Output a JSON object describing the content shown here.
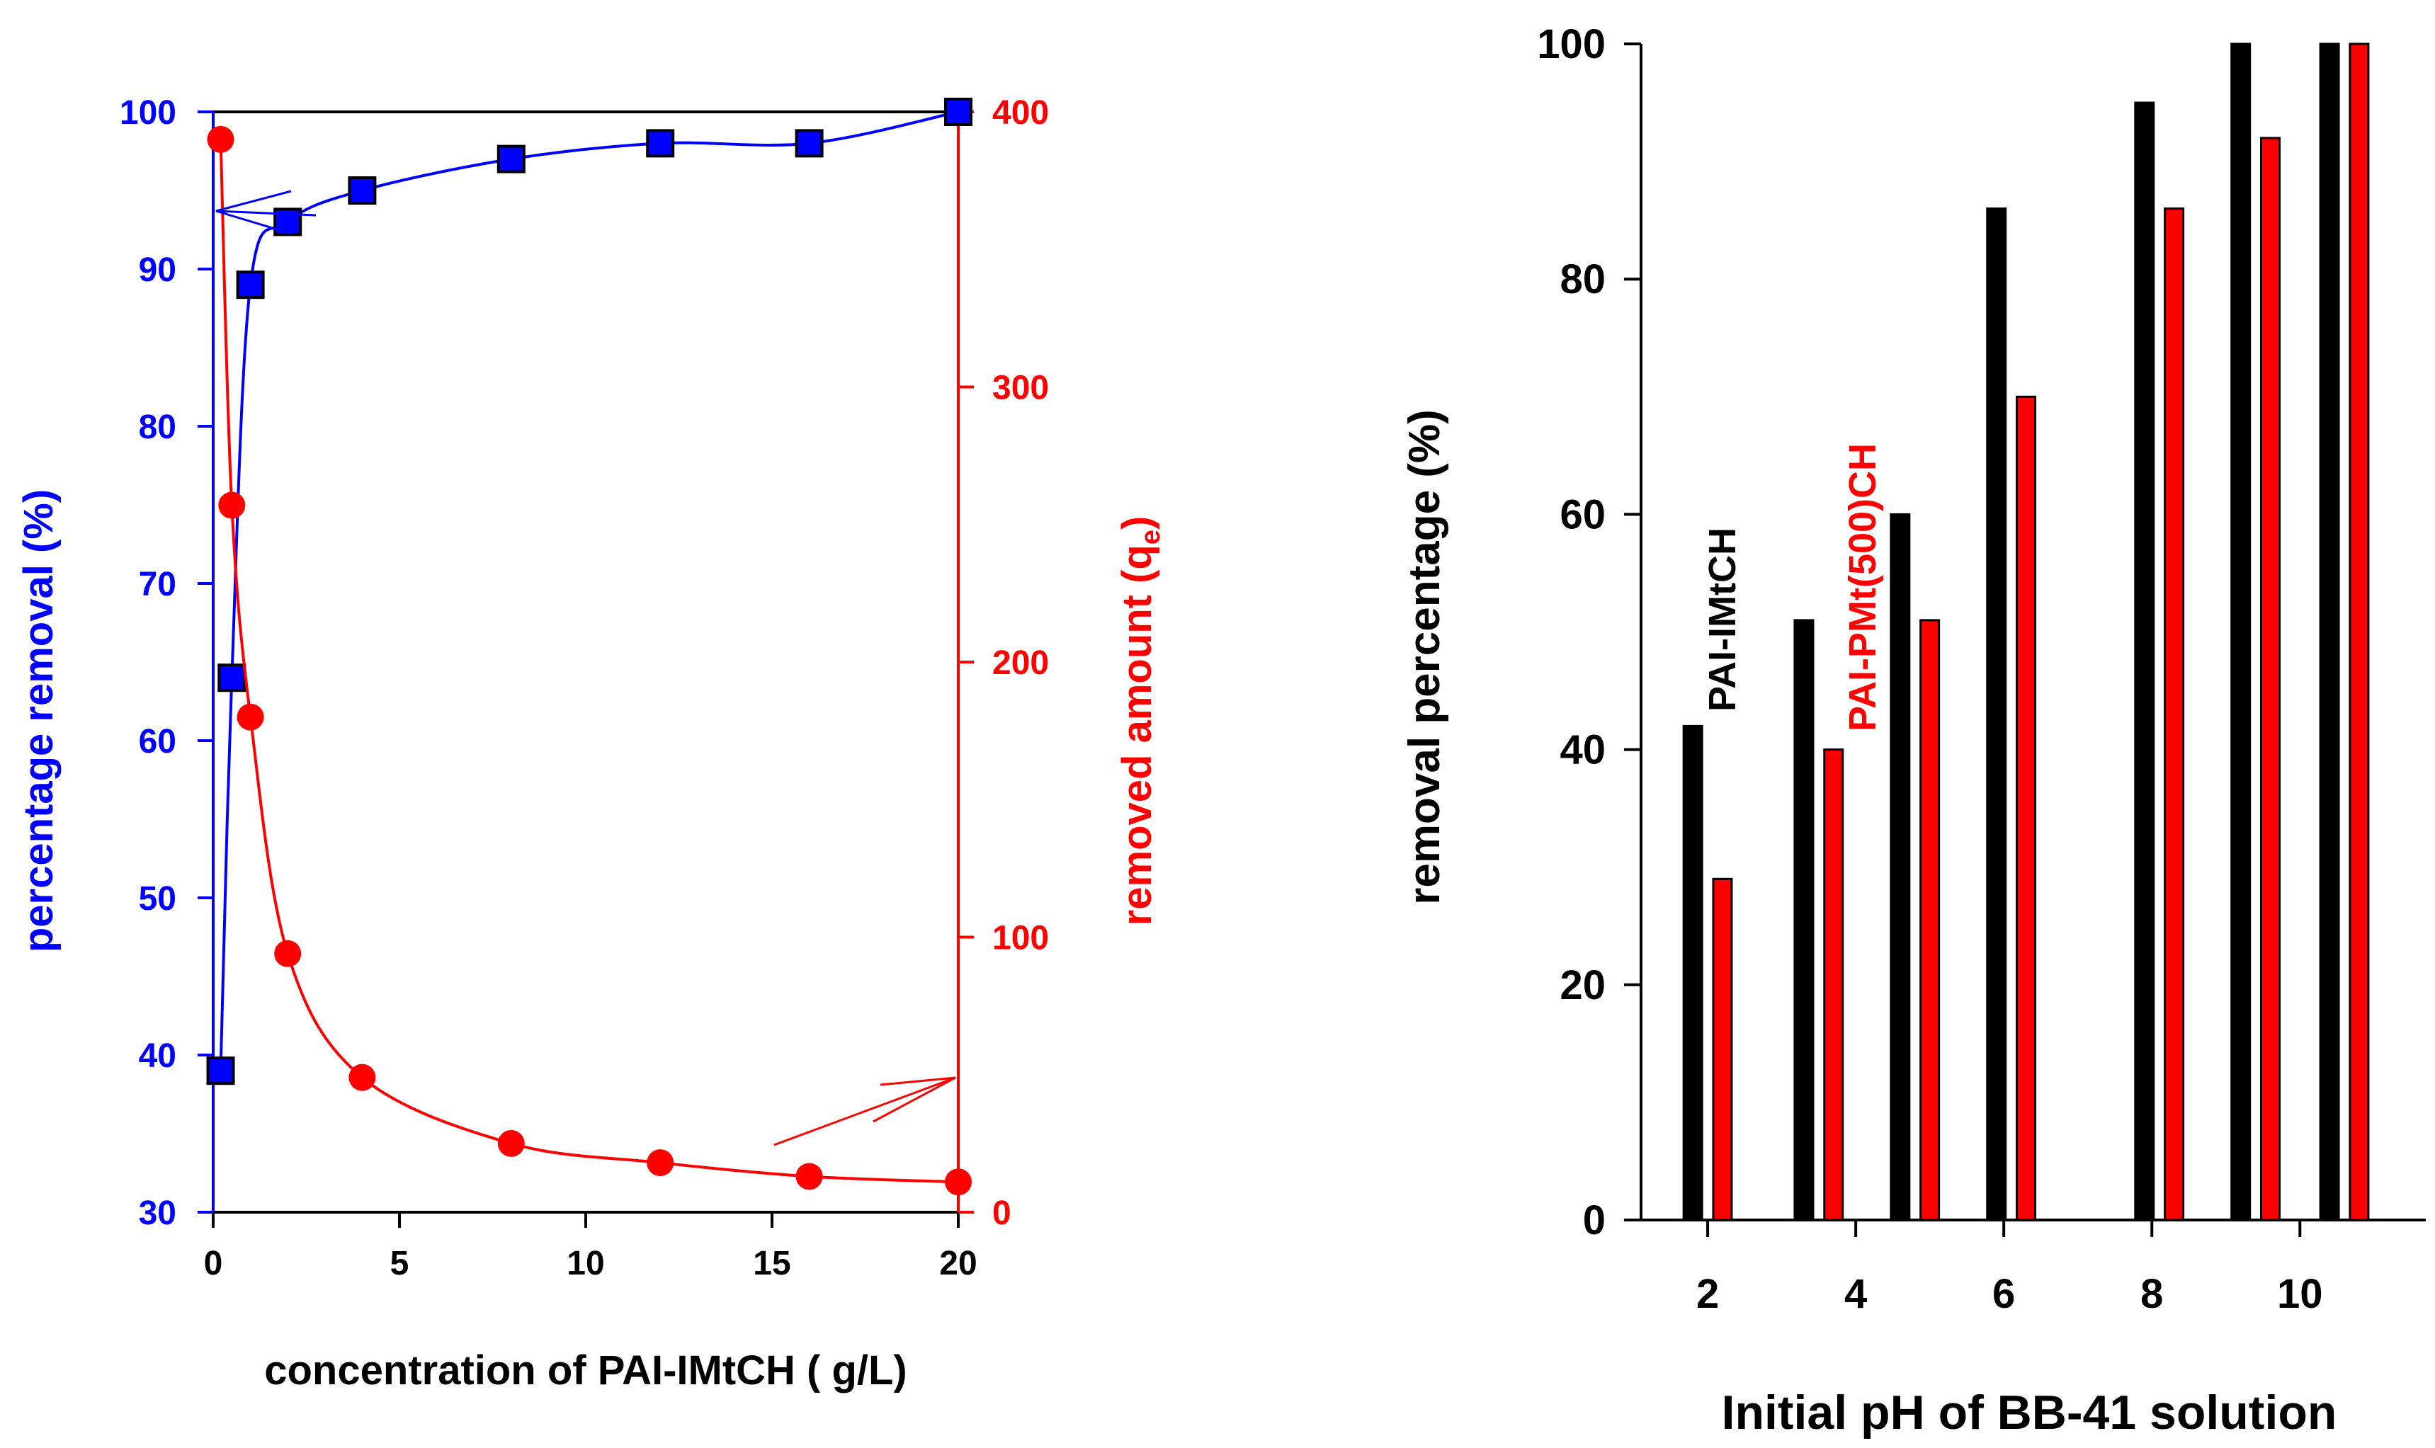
{
  "chart_data": [
    {
      "type": "scatter",
      "title": "",
      "xlabel": "concentration of PAI-IMtCH ( g/L)",
      "ylabel": "percentage removal (%)",
      "y2label": "removed amount (q",
      "y2label_sub": "e",
      "y2label_close": ")",
      "xlim": [
        0,
        20
      ],
      "ylim": [
        30,
        100
      ],
      "y2lim": [
        0,
        400
      ],
      "xticks": [
        "0",
        "5",
        "10",
        "15",
        "20"
      ],
      "yticks": [
        "30",
        "40",
        "50",
        "60",
        "70",
        "80",
        "90",
        "100"
      ],
      "y2ticks": [
        "0",
        "100",
        "200",
        "300",
        "400"
      ],
      "grid": false,
      "series": [
        {
          "axis": "left",
          "marker": "square",
          "color": "#0000ff",
          "x": [
            0.2,
            0.5,
            1,
            2,
            4,
            8,
            12,
            16,
            20
          ],
          "y": [
            39,
            64,
            89,
            93,
            95,
            97,
            98,
            98,
            100
          ]
        },
        {
          "axis": "right",
          "marker": "circle",
          "color": "#ff0000",
          "x": [
            0.2,
            0.5,
            1,
            2,
            4,
            8,
            12,
            16,
            20
          ],
          "y": [
            390,
            257,
            180,
            94,
            49,
            25,
            18,
            13,
            11
          ]
        }
      ]
    },
    {
      "type": "bar",
      "title": "",
      "xlabel": "Initial pH of BB-41 solution",
      "ylabel": "removal percentage (%)",
      "xlim": [
        1.1,
        11.7
      ],
      "ylim": [
        0,
        100
      ],
      "xticks": [
        "2",
        "4",
        "6",
        "8",
        "10"
      ],
      "yticks": [
        "0",
        "20",
        "40",
        "60",
        "80",
        "100"
      ],
      "grid": false,
      "series": [
        {
          "name": "PAI-IMtCH",
          "color": "#000000",
          "x": [
            1.8,
            3.3,
            4.6,
            5.9,
            7.9,
            9.2,
            10.4
          ],
          "values": [
            42,
            51,
            60,
            86,
            95,
            100,
            100
          ]
        },
        {
          "name": "PAI-PMt(500)CH",
          "color": "#ff0000",
          "x": [
            2.2,
            3.7,
            5.0,
            6.3,
            8.3,
            9.6,
            10.8
          ],
          "values": [
            29,
            40,
            51,
            70,
            86,
            92,
            100
          ]
        }
      ],
      "annotations": [
        {
          "text": "PAI-IMtCH",
          "color": "#000000"
        },
        {
          "text": "PAI-PMt(500)CH",
          "color": "#ff0000"
        }
      ]
    }
  ]
}
